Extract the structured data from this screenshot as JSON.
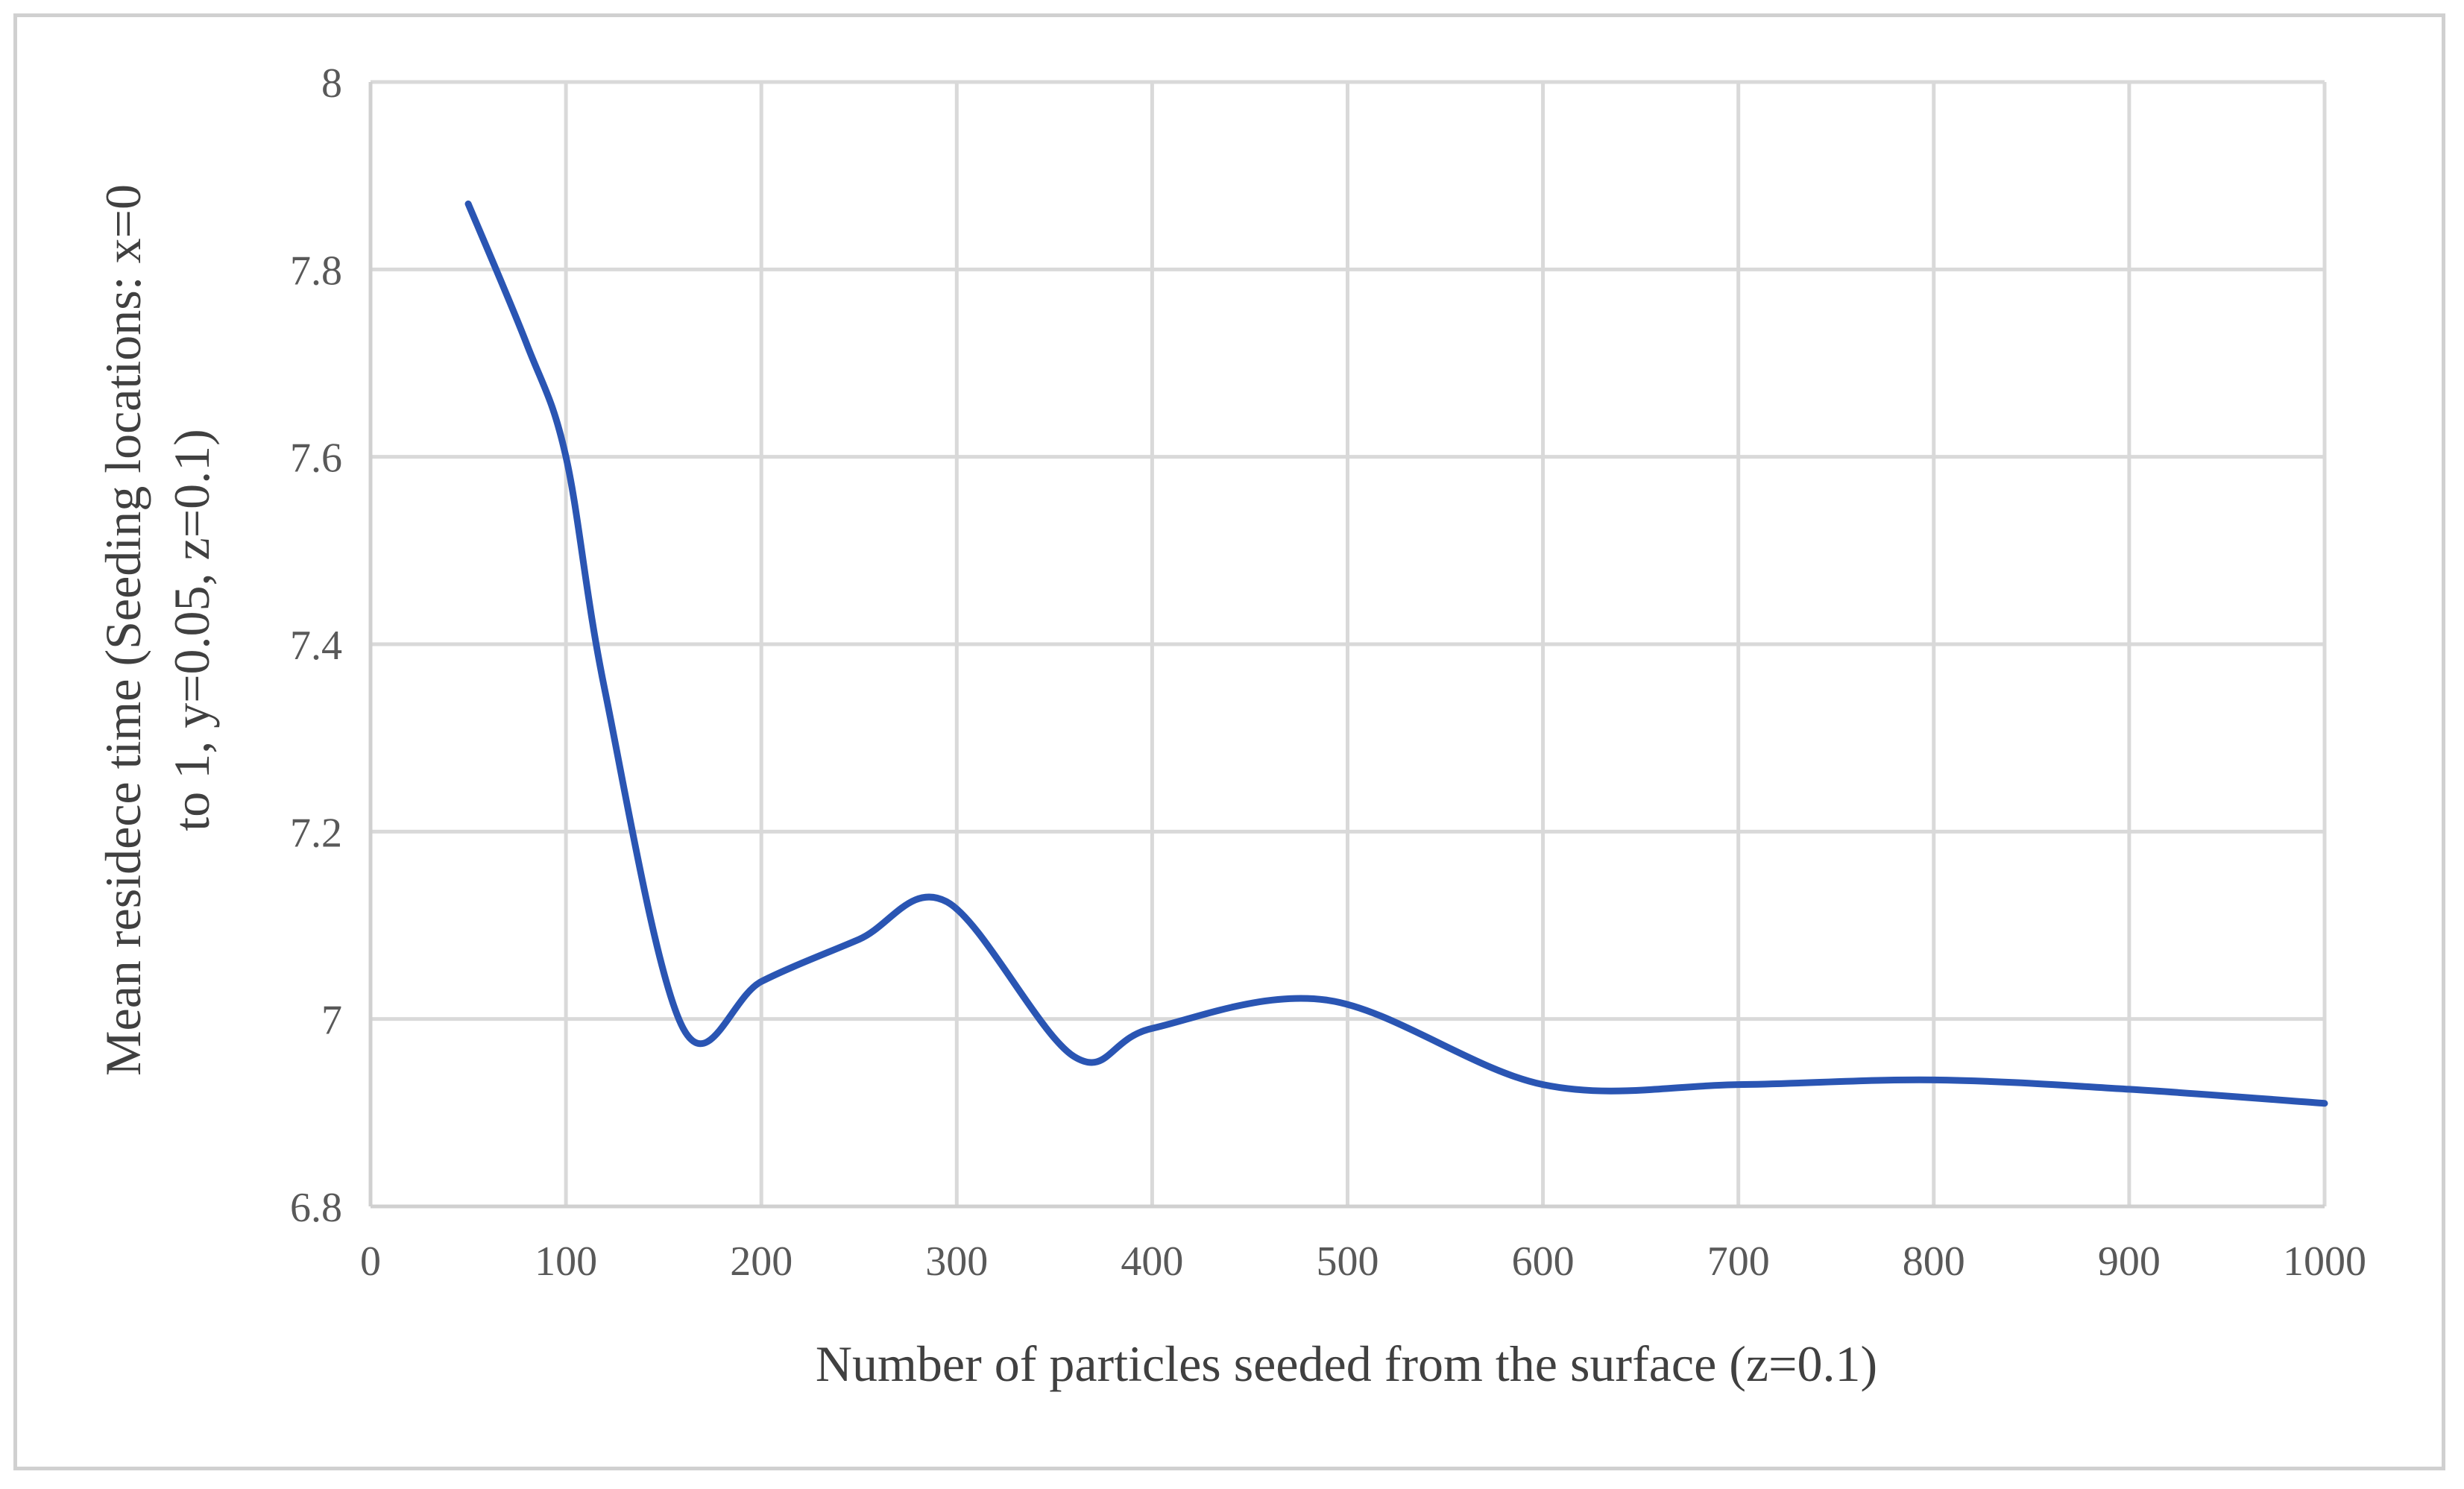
{
  "chart_data": {
    "type": "line",
    "title": "",
    "xlabel": "Number of particles seeded from the surface (z=0.1)",
    "ylabel_lines": [
      "Mean residece time (Seeding locations: x=0",
      "to 1, y=0.05, z=0.1)"
    ],
    "xlim": [
      0,
      1000
    ],
    "ylim": [
      6.8,
      8
    ],
    "xticks": [
      0,
      100,
      200,
      300,
      400,
      500,
      600,
      700,
      800,
      900,
      1000
    ],
    "xtick_labels": [
      "0",
      "100",
      "200",
      "300",
      "400",
      "500",
      "600",
      "700",
      "800",
      "900",
      "1000"
    ],
    "yticks": [
      6.8,
      7,
      7.2,
      7.4,
      7.6,
      7.8,
      8
    ],
    "ytick_labels": [
      "6.8",
      "7",
      "7.2",
      "7.4",
      "7.6",
      "7.8",
      "8"
    ],
    "grid": true,
    "series": [
      {
        "name": "Mean residence time",
        "color": "#2a55b3",
        "x": [
          50,
          80,
          100,
          120,
          160,
          200,
          250,
          295,
          360,
          400,
          490,
          600,
          700,
          800,
          900,
          1000
        ],
        "y": [
          7.87,
          7.72,
          7.6,
          7.35,
          6.99,
          7.04,
          7.085,
          7.125,
          6.96,
          6.99,
          7.02,
          6.93,
          6.93,
          6.935,
          6.925,
          6.91
        ]
      }
    ]
  }
}
